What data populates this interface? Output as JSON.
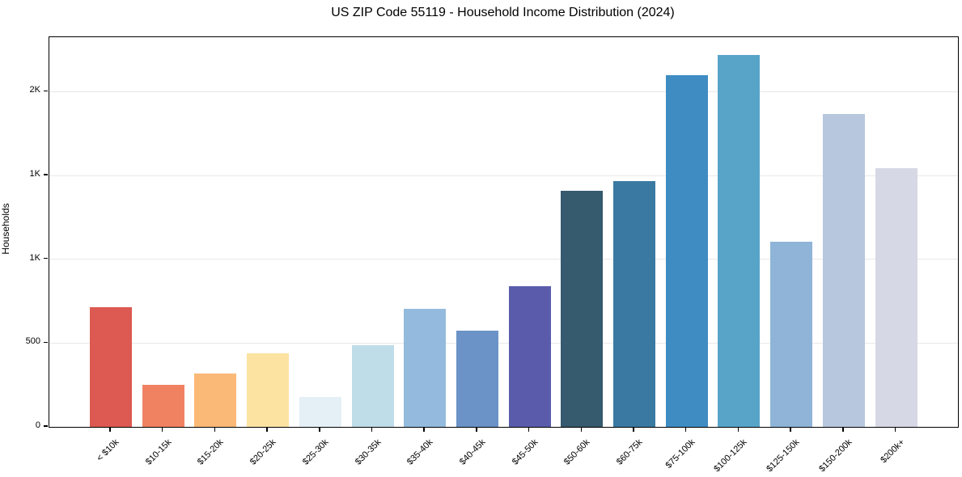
{
  "chart_data": {
    "type": "bar",
    "title": "US ZIP Code 55119 - Household Income Distribution (2024)",
    "xlabel": "",
    "ylabel": "Households",
    "categories": [
      "< $10k",
      "$10-15k",
      "$15-20k",
      "$20-25k",
      "$25-30k",
      "$30-35k",
      "$35-40k",
      "$40-45k",
      "$45-50k",
      "$50-60k",
      "$60-75k",
      "$75-100k",
      "$100-125k",
      "$125-150k",
      "$150-200k",
      "$200k+"
    ],
    "values": [
      715,
      250,
      320,
      440,
      180,
      485,
      705,
      575,
      840,
      1410,
      1465,
      2100,
      2220,
      1105,
      1865,
      1545
    ],
    "bar_colors": [
      "#dc5a52",
      "#f08262",
      "#fbb977",
      "#fde3a2",
      "#e4f0f5",
      "#bfdce9",
      "#94bbdd",
      "#6b93c7",
      "#5a5cab",
      "#365a6e",
      "#3a7aa2",
      "#3e8cc2",
      "#58a4c9",
      "#8fb4d8",
      "#b7c7de",
      "#d7d8e5"
    ],
    "yticks": [
      {
        "value": 0,
        "label": "0"
      },
      {
        "value": 500,
        "label": "500"
      },
      {
        "value": 1000,
        "label": "1K"
      },
      {
        "value": 1500,
        "label": "1K"
      },
      {
        "value": 2000,
        "label": "2K"
      }
    ],
    "ylim": [
      0,
      2325
    ],
    "grid": "horizontal",
    "legend": "none",
    "background_color": "#ffffff",
    "spine_color": "#000000",
    "gridline_color": "#e8e8e8"
  }
}
